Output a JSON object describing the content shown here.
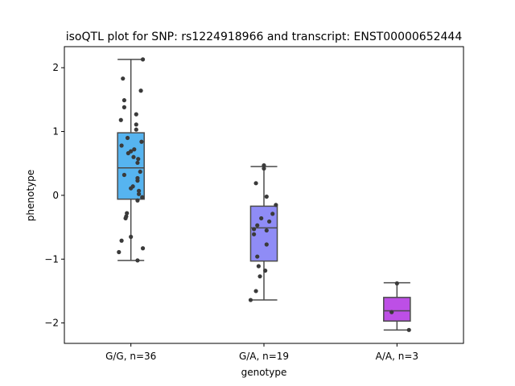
{
  "chart_data": {
    "type": "box",
    "title": "isoQTL plot for SNP: rs1224918966 and transcript: ENST00000652444",
    "xlabel": "genotype",
    "ylabel": "phenotype",
    "ylim": [
      -2.32,
      2.33
    ],
    "yticks": [
      -2,
      -1,
      0,
      1,
      2
    ],
    "categories": [
      "G/G, n=36",
      "G/A, n=19",
      "A/A, n=3"
    ],
    "boxes": [
      {
        "category": "G/G, n=36",
        "color": "#56b4f0",
        "q1": -0.06,
        "median": 0.43,
        "q3": 0.98,
        "whisker_low": -1.02,
        "whisker_high": 2.13
      },
      {
        "category": "G/A, n=19",
        "color": "#8f8cf6",
        "q1": -1.03,
        "median": -0.51,
        "q3": -0.17,
        "whisker_low": -1.64,
        "whisker_high": 0.45
      },
      {
        "category": "A/A, n=3",
        "color": "#bd4fe6",
        "q1": -1.97,
        "median": -1.81,
        "q3": -1.6,
        "whisker_low": -2.11,
        "whisker_high": -1.37
      }
    ],
    "points": [
      [
        [
          0.18,
          2.13
        ],
        [
          -0.12,
          1.83
        ],
        [
          0.15,
          1.64
        ],
        [
          -0.1,
          1.49
        ],
        [
          -0.1,
          1.38
        ],
        [
          0.08,
          1.27
        ],
        [
          -0.15,
          1.18
        ],
        [
          0.08,
          1.11
        ],
        [
          0.08,
          1.03
        ],
        [
          -0.05,
          0.9
        ],
        [
          0.16,
          0.84
        ],
        [
          -0.14,
          0.78
        ],
        [
          0.05,
          0.72
        ],
        [
          0.0,
          0.69
        ],
        [
          -0.04,
          0.66
        ],
        [
          0.04,
          0.6
        ],
        [
          0.11,
          0.57
        ],
        [
          0.1,
          0.51
        ],
        [
          0.14,
          0.37
        ],
        [
          -0.1,
          0.32
        ],
        [
          0.1,
          0.27
        ],
        [
          0.1,
          0.23
        ],
        [
          0.03,
          0.14
        ],
        [
          0.0,
          0.11
        ],
        [
          0.12,
          0.07
        ],
        [
          0.12,
          0.02
        ],
        [
          0.17,
          -0.03
        ],
        [
          0.1,
          -0.08
        ],
        [
          -0.06,
          -0.28
        ],
        [
          -0.07,
          -0.33
        ],
        [
          -0.08,
          -0.36
        ],
        [
          0.0,
          -0.65
        ],
        [
          -0.14,
          -0.71
        ],
        [
          0.18,
          -0.83
        ],
        [
          -0.18,
          -0.89
        ],
        [
          0.1,
          -1.02
        ]
      ],
      [
        [
          0.0,
          0.47
        ],
        [
          0.0,
          0.42
        ],
        [
          -0.12,
          0.19
        ],
        [
          0.04,
          -0.02
        ],
        [
          0.18,
          -0.15
        ],
        [
          0.13,
          -0.29
        ],
        [
          -0.04,
          -0.36
        ],
        [
          0.08,
          -0.41
        ],
        [
          -0.1,
          -0.47
        ],
        [
          -0.15,
          -0.53
        ],
        [
          0.04,
          -0.55
        ],
        [
          -0.15,
          -0.61
        ],
        [
          0.04,
          -0.77
        ],
        [
          -0.1,
          -0.96
        ],
        [
          -0.08,
          -1.11
        ],
        [
          0.02,
          -1.18
        ],
        [
          -0.06,
          -1.27
        ],
        [
          -0.12,
          -1.5
        ],
        [
          -0.2,
          -1.64
        ]
      ],
      [
        [
          0.0,
          -1.38
        ],
        [
          -0.08,
          -1.83
        ],
        [
          0.18,
          -2.11
        ]
      ]
    ]
  }
}
